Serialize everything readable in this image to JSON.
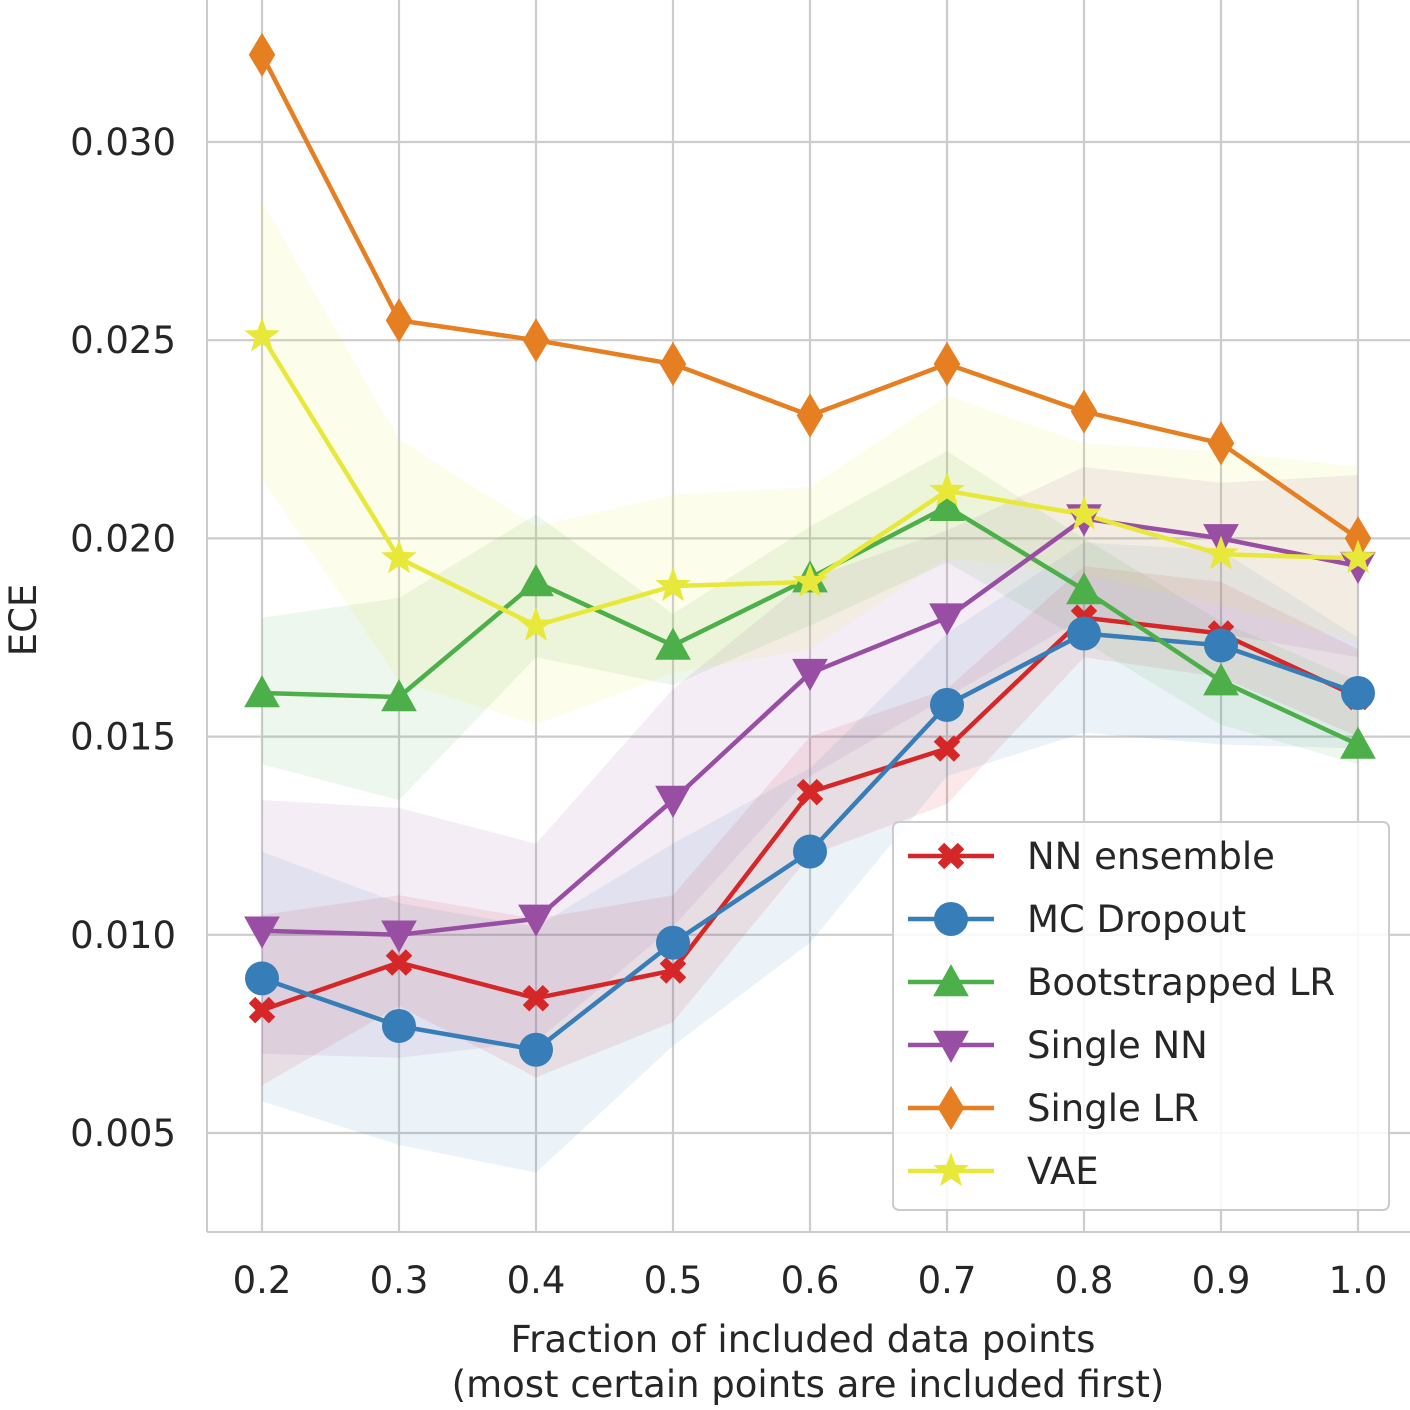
{
  "chart_data": {
    "type": "line",
    "title": "",
    "xlabel_line1": "Fraction of included data points",
    "xlabel_line2": "(most certain points are included first)",
    "ylabel": "ECE",
    "x": [
      0.2,
      0.3,
      0.4,
      0.5,
      0.6,
      0.7,
      0.8,
      0.9,
      1.0
    ],
    "x_tick_labels": [
      "0.2",
      "0.3",
      "0.4",
      "0.5",
      "0.6",
      "0.7",
      "0.8",
      "0.9",
      "1.0"
    ],
    "y_ticks": [
      0.005,
      0.01,
      0.015,
      0.02,
      0.025,
      0.03
    ],
    "y_tick_labels": [
      "0.005",
      "0.010",
      "0.015",
      "0.020",
      "0.025",
      "0.030"
    ],
    "xlim": [
      0.16,
      1.04
    ],
    "ylim": [
      0.0025,
      0.0335
    ],
    "grid": true,
    "legend_position": "lower-right",
    "series": [
      {
        "name": "NN ensemble",
        "color": "#d62728",
        "marker": "x",
        "values": [
          0.0081,
          0.0093,
          0.0084,
          0.0091,
          0.0136,
          0.0147,
          0.018,
          0.0176,
          0.016
        ],
        "lower": [
          0.0062,
          0.0082,
          0.0064,
          0.0078,
          0.012,
          0.0133,
          0.017,
          0.0165,
          0.015
        ],
        "upper": [
          0.0105,
          0.011,
          0.0104,
          0.011,
          0.015,
          0.0162,
          0.0193,
          0.0189,
          0.0172
        ]
      },
      {
        "name": "MC Dropout",
        "color": "#377eb8",
        "marker": "circle",
        "values": [
          0.0089,
          0.0077,
          0.0071,
          0.0098,
          0.0121,
          0.0158,
          0.0176,
          0.0173,
          0.0161
        ],
        "lower": [
          0.0058,
          0.0047,
          0.004,
          0.0072,
          0.0098,
          0.014,
          0.0151,
          0.0148,
          0.0147
        ],
        "upper": [
          0.0121,
          0.0108,
          0.0102,
          0.0123,
          0.0142,
          0.0176,
          0.0199,
          0.0197,
          0.0175
        ]
      },
      {
        "name": "Bootstrapped LR",
        "color": "#4daf4a",
        "marker": "triangle-up",
        "values": [
          0.0161,
          0.016,
          0.0189,
          0.0173,
          0.019,
          0.0208,
          0.0187,
          0.0164,
          0.0148
        ],
        "lower": [
          0.0143,
          0.0134,
          0.017,
          0.0163,
          0.0178,
          0.0194,
          0.0174,
          0.0153,
          0.0143
        ],
        "upper": [
          0.018,
          0.0185,
          0.0206,
          0.0181,
          0.0203,
          0.0222,
          0.02,
          0.0179,
          0.0164
        ]
      },
      {
        "name": "Single NN",
        "color": "#984ea3",
        "marker": "triangle-down",
        "values": [
          0.0101,
          0.01,
          0.0104,
          0.0134,
          0.0166,
          0.018,
          0.0205,
          0.02,
          0.0193
        ],
        "lower": [
          0.007,
          0.0069,
          0.0073,
          0.0102,
          0.014,
          0.016,
          0.018,
          0.0176,
          0.017
        ],
        "upper": [
          0.0134,
          0.0132,
          0.0123,
          0.0162,
          0.019,
          0.0202,
          0.0218,
          0.0214,
          0.0216
        ]
      },
      {
        "name": "Single LR",
        "color": "#e67e22",
        "marker": "diamond",
        "values": [
          0.0322,
          0.0255,
          0.025,
          0.0244,
          0.0231,
          0.0244,
          0.0232,
          0.0224,
          0.02
        ],
        "lower": [
          0.0322,
          0.0255,
          0.025,
          0.0244,
          0.0231,
          0.0244,
          0.0232,
          0.0224,
          0.02
        ],
        "upper": [
          0.0322,
          0.0255,
          0.025,
          0.0244,
          0.0231,
          0.0244,
          0.0232,
          0.0224,
          0.02
        ]
      },
      {
        "name": "VAE",
        "color": "#e8e83a",
        "marker": "star",
        "values": [
          0.0251,
          0.0195,
          0.0178,
          0.0188,
          0.0189,
          0.0212,
          0.0206,
          0.0196,
          0.0195
        ],
        "lower": [
          0.0215,
          0.0164,
          0.0153,
          0.0166,
          0.0172,
          0.0195,
          0.0191,
          0.0183,
          0.0174
        ],
        "upper": [
          0.0285,
          0.0225,
          0.0203,
          0.0211,
          0.0213,
          0.0236,
          0.0224,
          0.0222,
          0.0218
        ]
      }
    ]
  }
}
